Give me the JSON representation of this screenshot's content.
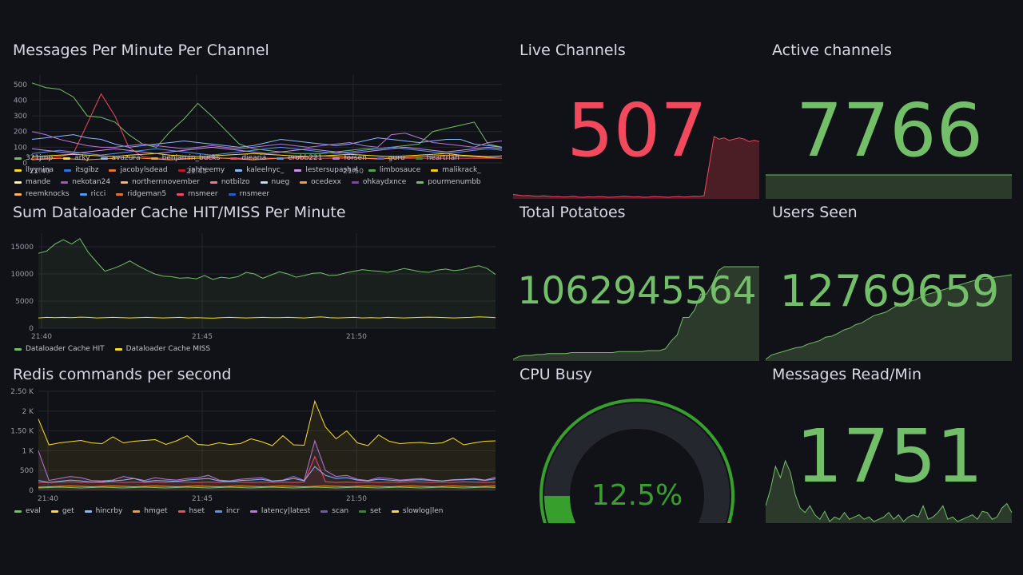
{
  "colors": {
    "green": "#73bf69",
    "red": "#f2495c",
    "yellow": "#fade2a",
    "bg": "#111217",
    "grid": "#2a2c33"
  },
  "panels": {
    "messages_per_minute": {
      "title": "Messages Per Minute Per Channel"
    },
    "dataloader": {
      "title": "Sum Dataloader Cache HIT/MISS Per Minute"
    },
    "redis": {
      "title": "Redis commands per second"
    },
    "live_channels": {
      "title": "Live Channels",
      "value": "507"
    },
    "active_channels": {
      "title": "Active channels",
      "value": "7766"
    },
    "total_potatoes": {
      "title": "Total Potatoes",
      "value": "1062945564"
    },
    "users_seen": {
      "title": "Users Seen",
      "value": "12769659"
    },
    "cpu_busy": {
      "title": "CPU Busy",
      "value": "12.5%",
      "gauge_fraction": 0.125
    },
    "messages_read": {
      "title": "Messages Read/Min",
      "value": "1751"
    }
  },
  "chart_data": [
    {
      "type": "line",
      "title": "Messages Per Minute Per Channel",
      "y_ticks": [
        "0",
        "100",
        "200",
        "300",
        "400",
        "500"
      ],
      "ylim": [
        0,
        560
      ],
      "x_ticks": [
        "21:40",
        "21:45",
        "21:50"
      ],
      "legend": [
        "321jmp",
        "arky",
        "avazura",
        "benjamin_bucks",
        "diearia",
        "erobb221",
        "forsen",
        "guru",
        "heartriah",
        "llyynina",
        "itsgibz",
        "jacobylsdead",
        "jahheemy",
        "kaleelnyc_",
        "lestersupashal",
        "limbosauce",
        "malikrack_",
        "mande",
        "nekotan24",
        "northernnovember",
        "notbilzo",
        "nueg",
        "ocedexx",
        "ohkaydxnce",
        "pourmenumbb",
        "reemknocks",
        "ricci",
        "ridgeman5",
        "rnsmeer",
        "rnsmeer"
      ],
      "legend_colors": [
        "#73bf69",
        "#fade2a",
        "#8ab8ff",
        "#ff9830",
        "#f2495c",
        "#5794f2",
        "#b877d9",
        "#705da0",
        "#37872d",
        "#fade2a",
        "#3274d9",
        "#e0752d",
        "#c4162a",
        "#8ab8ff",
        "#ca95e5",
        "#56a64b",
        "#f2cc0c",
        "#fff899",
        "#a352cc",
        "#ffb357",
        "#ff7383",
        "#c0d8ff",
        "#ff9830",
        "#8f3bb8",
        "#73bf69",
        "#ffb357",
        "#5794f2",
        "#e0752d",
        "#f2495c",
        "#1f60c4"
      ],
      "series": [
        {
          "color": "#73bf69",
          "values": [
            510,
            480,
            470,
            420,
            300,
            290,
            260,
            180,
            120,
            100,
            200,
            280,
            380,
            300,
            210,
            120,
            90,
            80,
            70,
            60,
            60,
            60,
            70,
            80,
            90,
            90,
            100,
            110,
            120,
            200,
            220,
            240,
            260,
            120,
            100
          ]
        },
        {
          "color": "#f2495c",
          "values": [
            30,
            30,
            40,
            60,
            250,
            440,
            300,
            100,
            40,
            30,
            30,
            30,
            30,
            30,
            30,
            30,
            30,
            30,
            30,
            30,
            30,
            30,
            30,
            30,
            30,
            30,
            30,
            30,
            30,
            30,
            30,
            30,
            30,
            30,
            30
          ]
        },
        {
          "color": "#8ab8ff",
          "values": [
            150,
            160,
            170,
            180,
            160,
            150,
            120,
            100,
            110,
            120,
            130,
            140,
            130,
            120,
            110,
            100,
            110,
            130,
            150,
            140,
            130,
            120,
            110,
            120,
            140,
            160,
            150,
            140,
            130,
            140,
            150,
            150,
            120,
            110,
            100
          ]
        },
        {
          "color": "#b877d9",
          "values": [
            200,
            180,
            150,
            130,
            110,
            100,
            100,
            110,
            120,
            110,
            100,
            90,
            100,
            110,
            100,
            90,
            100,
            110,
            120,
            110,
            100,
            110,
            120,
            130,
            110,
            100,
            180,
            190,
            160,
            130,
            120,
            110,
            100,
            130,
            140
          ]
        },
        {
          "color": "#fade2a",
          "values": [
            40,
            45,
            50,
            55,
            50,
            45,
            40,
            50,
            55,
            60,
            50,
            45,
            40,
            45,
            50,
            55,
            60,
            55,
            50,
            45,
            40,
            45,
            50,
            55,
            50,
            45,
            40,
            45,
            50,
            55,
            60,
            50,
            45,
            40,
            45
          ]
        },
        {
          "color": "#5794f2",
          "values": [
            60,
            70,
            80,
            70,
            60,
            50,
            60,
            70,
            80,
            90,
            80,
            70,
            60,
            50,
            60,
            70,
            80,
            90,
            100,
            90,
            80,
            70,
            60,
            70,
            80,
            90,
            100,
            90,
            80,
            70,
            60,
            70,
            80,
            90,
            80
          ]
        },
        {
          "color": "#ff9830",
          "values": [
            20,
            25,
            30,
            25,
            20,
            25,
            30,
            35,
            30,
            25,
            20,
            25,
            30,
            35,
            30,
            25,
            20,
            25,
            30,
            35,
            40,
            45,
            40,
            35,
            30,
            25,
            30,
            35,
            40,
            45,
            50,
            45,
            40,
            35,
            30
          ]
        },
        {
          "color": "#ca95e5",
          "values": [
            90,
            80,
            70,
            60,
            70,
            80,
            90,
            80,
            70,
            60,
            70,
            80,
            90,
            100,
            90,
            80,
            70,
            60,
            70,
            80,
            90,
            80,
            70,
            60,
            70,
            80,
            90,
            100,
            90,
            80,
            70,
            80,
            90,
            100,
            90
          ]
        }
      ]
    },
    {
      "type": "line",
      "title": "Sum Dataloader Cache HIT/MISS Per Minute",
      "y_ticks": [
        "0",
        "5000",
        "10000",
        "15000"
      ],
      "ylim": [
        0,
        17500
      ],
      "x_ticks": [
        "21:40",
        "21:45",
        "21:50"
      ],
      "series": [
        {
          "name": "Dataloader Cache HIT",
          "color": "#73bf69",
          "fill": true,
          "values": [
            13800,
            14200,
            15500,
            16300,
            15500,
            16500,
            14000,
            12200,
            10500,
            11000,
            11600,
            12400,
            11500,
            10700,
            10000,
            9600,
            9500,
            9200,
            9300,
            9100,
            9700,
            9000,
            9400,
            9200,
            9500,
            10300,
            10000,
            9200,
            9800,
            10400,
            10000,
            9400,
            9700,
            10100,
            10200,
            9700,
            9800,
            10200,
            10500,
            10800,
            10600,
            10500,
            10300,
            10600,
            11000,
            10700,
            10400,
            10300,
            10700,
            10900,
            10600,
            10800,
            11200,
            11500,
            11000,
            9900
          ]
        },
        {
          "name": "Dataloader Cache MISS",
          "color": "#fade2a",
          "fill": false,
          "values": [
            1900,
            2000,
            1950,
            2000,
            1950,
            2050,
            2000,
            1900,
            1950,
            2000,
            1950,
            1900,
            1950,
            2000,
            1950,
            1900,
            1950,
            2000,
            1900,
            1950,
            1900,
            1850,
            1950,
            2000,
            1950,
            1900,
            1950,
            2000,
            1950,
            1950,
            2000,
            1950,
            1900,
            2000,
            2100,
            1950,
            1900,
            1950,
            2000,
            1900,
            1950,
            1900,
            2000,
            1950,
            1900,
            1950,
            2000,
            2050,
            2000,
            1950,
            1900,
            1950,
            2000,
            2100,
            2050,
            1950
          ]
        }
      ]
    },
    {
      "type": "line",
      "title": "Redis commands per second",
      "y_ticks": [
        "0",
        "500",
        "1 K",
        "1.50 K",
        "2 K",
        "2.50 K"
      ],
      "ylim": [
        0,
        2500
      ],
      "x_ticks": [
        "21:40",
        "21:45",
        "21:50"
      ],
      "legend": [
        "eval",
        "get",
        "hincrby",
        "hmget",
        "hset",
        "incr",
        "latency|latest",
        "scan",
        "set",
        "slowlog|len"
      ],
      "legend_colors": [
        "#73bf69",
        "#fade2a",
        "#8ab8ff",
        "#ff9830",
        "#f2495c",
        "#5794f2",
        "#b877d9",
        "#705da0",
        "#37872d",
        "#fade2a"
      ],
      "series": [
        {
          "color": "#fade2a",
          "fill": true,
          "values": [
            1800,
            1150,
            1200,
            1230,
            1260,
            1200,
            1180,
            1350,
            1200,
            1240,
            1260,
            1280,
            1160,
            1250,
            1380,
            1160,
            1140,
            1200,
            1160,
            1180,
            1300,
            1230,
            1130,
            1380,
            1150,
            1140,
            2250,
            1600,
            1300,
            1500,
            1200,
            1130,
            1400,
            1240,
            1180,
            1200,
            1210,
            1180,
            1200,
            1320,
            1150,
            1200,
            1240,
            1250
          ]
        },
        {
          "color": "#b877d9",
          "fill": true,
          "values": [
            1000,
            250,
            300,
            350,
            320,
            250,
            240,
            260,
            350,
            300,
            250,
            320,
            280,
            260,
            300,
            320,
            380,
            260,
            240,
            280,
            300,
            320,
            240,
            260,
            350,
            250,
            1250,
            500,
            350,
            380,
            280,
            250,
            320,
            300,
            260,
            280,
            300,
            260,
            240,
            270,
            280,
            300,
            260,
            330
          ]
        },
        {
          "color": "#f2495c",
          "fill": true,
          "values": [
            200,
            200,
            210,
            220,
            200,
            210,
            200,
            220,
            200,
            210,
            200,
            210,
            200,
            220,
            210,
            200,
            210,
            200,
            220,
            210,
            200,
            210,
            200,
            210,
            200,
            210,
            850,
            220,
            200,
            210,
            200,
            210,
            200,
            210,
            200,
            220,
            210,
            200,
            210,
            200,
            220,
            210,
            200,
            210
          ]
        },
        {
          "color": "#8ab8ff",
          "fill": false,
          "values": [
            250,
            200,
            230,
            260,
            240,
            210,
            220,
            240,
            260,
            300,
            220,
            250,
            240,
            230,
            260,
            280,
            300,
            240,
            220,
            250,
            260,
            280,
            230,
            250,
            300,
            240,
            600,
            380,
            300,
            320,
            260,
            240,
            280,
            260,
            240,
            260,
            270,
            250,
            240,
            260,
            270,
            280,
            250,
            290
          ]
        },
        {
          "color": "#ff9830",
          "fill": false,
          "values": [
            80,
            90,
            100,
            110,
            100,
            90,
            100,
            110,
            100,
            90,
            100,
            110,
            100,
            90,
            100,
            110,
            100,
            90,
            100,
            110,
            100,
            90,
            100,
            110,
            100,
            90,
            100,
            110,
            100,
            90,
            100,
            110,
            100,
            90,
            100,
            110,
            100,
            90,
            100,
            110,
            100,
            90,
            100,
            110
          ]
        },
        {
          "color": "#73bf69",
          "fill": false,
          "values": [
            60,
            70,
            80,
            70,
            60,
            70,
            80,
            70,
            60,
            70,
            80,
            70,
            60,
            70,
            80,
            70,
            60,
            70,
            80,
            70,
            60,
            70,
            80,
            70,
            60,
            70,
            80,
            70,
            60,
            70,
            80,
            70,
            60,
            70,
            80,
            70,
            60,
            70,
            80,
            70,
            60,
            70,
            80,
            70
          ]
        }
      ]
    },
    {
      "type": "area",
      "title": "Live Channels",
      "color": "#f2495c",
      "fill": "#4a1e24",
      "values": [
        80,
        75,
        70,
        72,
        68,
        65,
        70,
        66,
        62,
        64,
        60,
        62,
        66,
        60,
        58,
        62,
        60,
        64,
        62,
        58,
        60,
        62,
        66,
        64,
        60,
        62,
        58,
        60,
        64,
        62,
        60,
        58,
        62,
        64,
        60,
        62,
        66,
        64,
        70,
        300,
        540,
        520,
        530,
        510,
        520,
        530,
        520,
        500,
        510,
        500
      ]
    },
    {
      "type": "area",
      "title": "Active channels",
      "color": "#73bf69",
      "fill": "#2b3a2b",
      "values": [
        7700,
        7700,
        7700,
        7700,
        7700,
        7700,
        7700,
        7700,
        7700,
        7700,
        7700,
        7700,
        7700,
        7700,
        7700,
        7700,
        7700,
        7700,
        7700,
        7700
      ]
    },
    {
      "type": "area",
      "title": "Total Potatoes",
      "color": "#73bf69",
      "fill": "#2b3a2b",
      "values": [
        5,
        8,
        9,
        9,
        10,
        10,
        11,
        11,
        11,
        11,
        12,
        12,
        12,
        12,
        12,
        12,
        12,
        12,
        13,
        13,
        13,
        13,
        13,
        14,
        14,
        14,
        16,
        24,
        30,
        48,
        48,
        56,
        72,
        72,
        82,
        96,
        100,
        100,
        100,
        100,
        100,
        100,
        100
      ]
    },
    {
      "type": "area",
      "title": "Users Seen",
      "color": "#73bf69",
      "fill": "#2b3a2b",
      "values": [
        5,
        10,
        12,
        14,
        16,
        18,
        19,
        22,
        24,
        26,
        30,
        31,
        34,
        38,
        40,
        44,
        46,
        50,
        54,
        56,
        58,
        62,
        66,
        68,
        70,
        72,
        76,
        78,
        80,
        82,
        84,
        86,
        88,
        90,
        92,
        94,
        95,
        96,
        97,
        98,
        99,
        100
      ]
    },
    {
      "type": "area",
      "title": "Messages Read/Min",
      "color": "#73bf69",
      "fill": "#2b3a2b",
      "values": [
        20,
        35,
        55,
        45,
        60,
        50,
        30,
        18,
        14,
        20,
        12,
        8,
        15,
        6,
        10,
        8,
        14,
        8,
        10,
        12,
        8,
        10,
        6,
        8,
        10,
        14,
        8,
        12,
        6,
        10,
        12,
        10,
        20,
        8,
        10,
        14,
        20,
        8,
        10,
        6,
        8,
        10,
        12,
        8,
        15,
        14,
        8,
        10,
        18,
        22,
        14
      ]
    }
  ]
}
